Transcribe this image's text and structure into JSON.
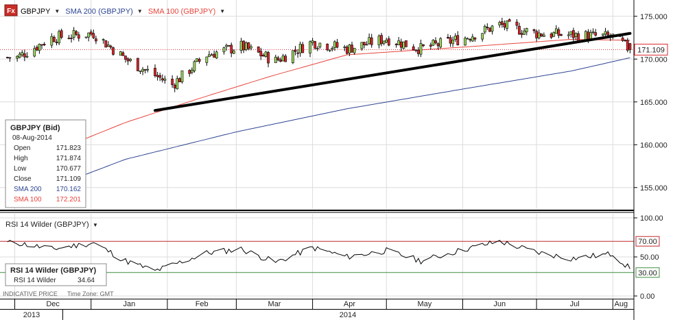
{
  "header": {
    "logo": "Fx",
    "legend": [
      {
        "label": "GBPJPY",
        "color": "#000000"
      },
      {
        "label": "SMA 200 (GBPJPY)",
        "color": "#2c4491"
      },
      {
        "label": "SMA 100 (GBPJPY)",
        "color": "#e8433a"
      }
    ],
    "dropdown_glyph": "▼"
  },
  "colors": {
    "up_candle": "#9ad35e",
    "down_candle": "#d9262b",
    "sma200": "#2c4491",
    "sma100": "#e8433a",
    "trendline": "#000000",
    "rsi_line": "#000000",
    "rsi_upper": "#c0282b",
    "rsi_lower": "#3e8e3e",
    "last_price_line": "#d9262b",
    "grid": "#dcdcdc"
  },
  "info_box": {
    "title": "GBPJPY (Bid)",
    "date": "08-Aug-2014",
    "rows": [
      {
        "label": "Open",
        "value": "171.823",
        "color": "#222222"
      },
      {
        "label": "High",
        "value": "171.874",
        "color": "#222222"
      },
      {
        "label": "Low",
        "value": "170.677",
        "color": "#222222"
      },
      {
        "label": "Close",
        "value": "171.109",
        "color": "#222222"
      },
      {
        "label": "SMA 200",
        "value": "170.162",
        "color": "#2c4491"
      },
      {
        "label": "SMA 100",
        "value": "172.201",
        "color": "#e8433a"
      }
    ]
  },
  "price_axis": {
    "ticks": [
      "175.000",
      "170.000",
      "165.000",
      "160.000",
      "155.000"
    ],
    "last_price": "171.109"
  },
  "rsi": {
    "header": "RSI 14 Wilder (GBPJPY)",
    "box_title": "RSI 14 Wilder (GBPJPY)",
    "box_label": "RSI 14 Wilder",
    "box_value": "34.64",
    "ticks": [
      "100.00",
      "50.00",
      "0.00"
    ],
    "upper_label": "70.00",
    "lower_label": "30.00"
  },
  "footer": {
    "indicative": "INDICATIVE PRICE",
    "timezone": "Time Zone: GMT",
    "months": [
      "Dec",
      "Jan",
      "Feb",
      "Mar",
      "Apr",
      "May",
      "Jun",
      "Jul",
      "Aug"
    ],
    "years": [
      "2013",
      "2014"
    ]
  },
  "chart_data": [
    {
      "type": "candlestick",
      "title": "GBPJPY",
      "x": [
        "2013-12-02",
        "2013-12-16",
        "2014-01-02",
        "2014-01-15",
        "2014-02-03",
        "2014-02-17",
        "2014-03-03",
        "2014-03-17",
        "2014-04-01",
        "2014-04-15",
        "2014-05-01",
        "2014-05-15",
        "2014-06-02",
        "2014-06-16",
        "2014-07-01",
        "2014-07-15",
        "2014-08-01",
        "2014-08-08"
      ],
      "close": [
        170.2,
        172.5,
        173.0,
        170.0,
        167.0,
        170.5,
        171.5,
        169.8,
        172.0,
        171.2,
        172.4,
        171.2,
        172.5,
        174.0,
        173.0,
        172.8,
        172.6,
        171.109
      ],
      "ylim": [
        152.5,
        176.5
      ],
      "series": [
        {
          "name": "SMA 200 (GBPJPY)",
          "x": [
            "2013-12-02",
            "2014-01-15",
            "2014-03-01",
            "2014-04-15",
            "2014-06-01",
            "2014-07-15",
            "2014-08-08"
          ],
          "values": [
            153.5,
            158.3,
            161.5,
            164.2,
            166.5,
            168.6,
            170.162
          ]
        },
        {
          "name": "SMA 100 (GBPJPY)",
          "x": [
            "2013-12-02",
            "2014-01-15",
            "2014-02-15",
            "2014-03-15",
            "2014-04-15",
            "2014-06-01",
            "2014-07-15",
            "2014-08-08"
          ],
          "values": [
            157.5,
            162.6,
            165.5,
            168.0,
            170.5,
            171.4,
            172.3,
            172.201
          ]
        }
      ],
      "trendline": {
        "x": [
          "2014-01-27",
          "2014-08-08"
        ],
        "y": [
          164.0,
          173.0
        ]
      }
    },
    {
      "type": "line",
      "title": "RSI 14 Wilder (GBPJPY)",
      "x": [
        "2013-12-02",
        "2013-12-16",
        "2014-01-02",
        "2014-01-15",
        "2014-01-27",
        "2014-02-17",
        "2014-03-03",
        "2014-03-17",
        "2014-04-01",
        "2014-04-15",
        "2014-05-01",
        "2014-05-15",
        "2014-06-02",
        "2014-06-16",
        "2014-07-01",
        "2014-07-15",
        "2014-08-01",
        "2014-08-08"
      ],
      "values": [
        68,
        60,
        68,
        45,
        32,
        55,
        60,
        43,
        62,
        50,
        58,
        45,
        60,
        70,
        56,
        48,
        54,
        34.64
      ],
      "ylim": [
        0,
        100
      ],
      "reference_lines": [
        70,
        30
      ]
    }
  ]
}
